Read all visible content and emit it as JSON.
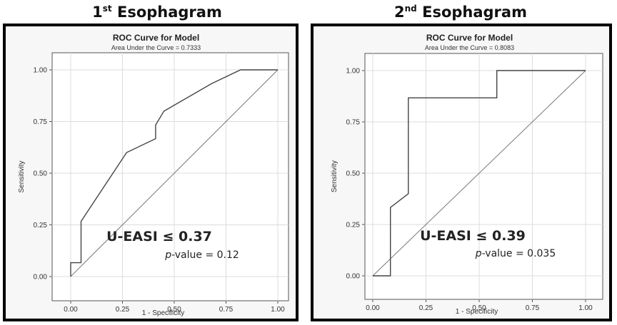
{
  "panels": [
    {
      "heading": {
        "main_before": "1",
        "superscript": "st",
        "main_after": "Esophagram"
      },
      "annotation": {
        "threshold": "U-EASI ≤ 0.37",
        "p_italic": "p",
        "p_rest": "-value = 0.12"
      }
    },
    {
      "heading": {
        "main_before": "2",
        "superscript": "nd",
        "main_after": "Esophagram"
      },
      "annotation": {
        "threshold": "U-EASI ≤ 0.39",
        "p_italic": "p",
        "p_rest": "-value = 0.035"
      }
    }
  ],
  "chart_data": [
    {
      "type": "line",
      "title": "ROC Curve for Model",
      "subtitle": "Area Under the Curve = 0.7333",
      "xlabel": "1 - Specificity",
      "ylabel": "Sensitivity",
      "xlim": [
        0,
        1
      ],
      "ylim": [
        0,
        1
      ],
      "xticks": [
        "0.00",
        "0.25",
        "0.50",
        "0.75",
        "1.00"
      ],
      "yticks": [
        "0.00",
        "0.25",
        "0.50",
        "0.75",
        "1.00"
      ],
      "grid": true,
      "reference_line": true,
      "series": [
        {
          "x": [
            0.0,
            0.0,
            0.05,
            0.05,
            0.27,
            0.41,
            0.41,
            0.45,
            0.68,
            0.82,
            1.0
          ],
          "y": [
            0.0,
            0.067,
            0.067,
            0.267,
            0.6,
            0.667,
            0.733,
            0.8,
            0.933,
            1.0,
            1.0
          ]
        }
      ]
    },
    {
      "type": "line",
      "title": "ROC Curve for Model",
      "subtitle": "Area Under the Curve = 0.8083",
      "xlabel": "1 - Specificity",
      "ylabel": "Sensitivity",
      "xlim": [
        0,
        1
      ],
      "ylim": [
        0,
        1
      ],
      "xticks": [
        "0.00",
        "0.25",
        "0.50",
        "0.75",
        "1.00"
      ],
      "yticks": [
        "0.00",
        "0.25",
        "0.50",
        "0.75",
        "1.00"
      ],
      "grid": true,
      "reference_line": true,
      "series": [
        {
          "x": [
            0.0,
            0.083,
            0.083,
            0.167,
            0.167,
            0.583,
            0.583,
            1.0
          ],
          "y": [
            0.0,
            0.0,
            0.333,
            0.4,
            0.867,
            0.867,
            1.0,
            1.0
          ]
        }
      ]
    }
  ]
}
